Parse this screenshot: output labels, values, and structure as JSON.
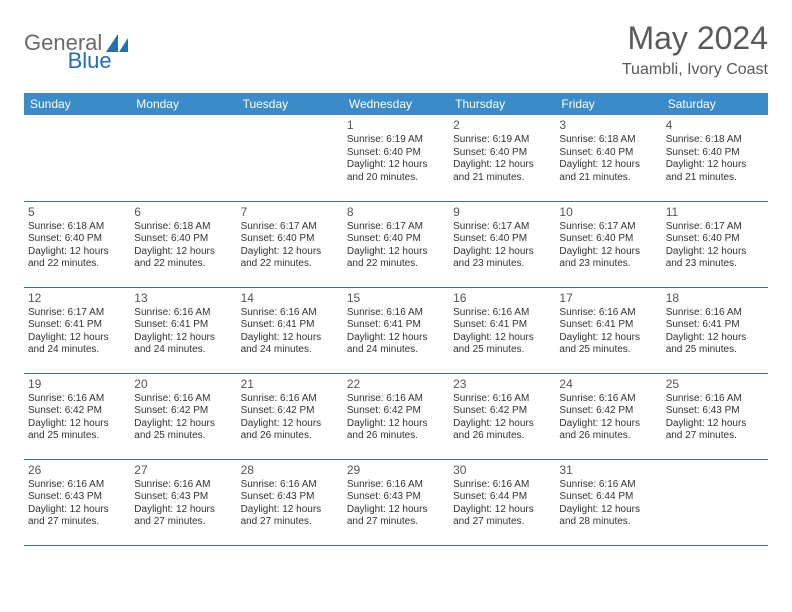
{
  "logo": {
    "text1": "General",
    "text2": "Blue"
  },
  "title": "May 2024",
  "subtitle": "Tuambli, Ivory Coast",
  "colors": {
    "header_bg": "#3b8bc9",
    "header_text": "#ffffff",
    "row_border": "#4a6a8a",
    "logo_gray": "#6a6a6a",
    "logo_blue": "#1f6fb2",
    "title_gray": "#5a5a5a",
    "body_text": "#333333"
  },
  "days": [
    "Sunday",
    "Monday",
    "Tuesday",
    "Wednesday",
    "Thursday",
    "Friday",
    "Saturday"
  ],
  "weeks": [
    [
      null,
      null,
      null,
      {
        "n": "1",
        "sr": "6:19 AM",
        "ss": "6:40 PM",
        "dl": "12 hours and 20 minutes."
      },
      {
        "n": "2",
        "sr": "6:19 AM",
        "ss": "6:40 PM",
        "dl": "12 hours and 21 minutes."
      },
      {
        "n": "3",
        "sr": "6:18 AM",
        "ss": "6:40 PM",
        "dl": "12 hours and 21 minutes."
      },
      {
        "n": "4",
        "sr": "6:18 AM",
        "ss": "6:40 PM",
        "dl": "12 hours and 21 minutes."
      }
    ],
    [
      {
        "n": "5",
        "sr": "6:18 AM",
        "ss": "6:40 PM",
        "dl": "12 hours and 22 minutes."
      },
      {
        "n": "6",
        "sr": "6:18 AM",
        "ss": "6:40 PM",
        "dl": "12 hours and 22 minutes."
      },
      {
        "n": "7",
        "sr": "6:17 AM",
        "ss": "6:40 PM",
        "dl": "12 hours and 22 minutes."
      },
      {
        "n": "8",
        "sr": "6:17 AM",
        "ss": "6:40 PM",
        "dl": "12 hours and 22 minutes."
      },
      {
        "n": "9",
        "sr": "6:17 AM",
        "ss": "6:40 PM",
        "dl": "12 hours and 23 minutes."
      },
      {
        "n": "10",
        "sr": "6:17 AM",
        "ss": "6:40 PM",
        "dl": "12 hours and 23 minutes."
      },
      {
        "n": "11",
        "sr": "6:17 AM",
        "ss": "6:40 PM",
        "dl": "12 hours and 23 minutes."
      }
    ],
    [
      {
        "n": "12",
        "sr": "6:17 AM",
        "ss": "6:41 PM",
        "dl": "12 hours and 24 minutes."
      },
      {
        "n": "13",
        "sr": "6:16 AM",
        "ss": "6:41 PM",
        "dl": "12 hours and 24 minutes."
      },
      {
        "n": "14",
        "sr": "6:16 AM",
        "ss": "6:41 PM",
        "dl": "12 hours and 24 minutes."
      },
      {
        "n": "15",
        "sr": "6:16 AM",
        "ss": "6:41 PM",
        "dl": "12 hours and 24 minutes."
      },
      {
        "n": "16",
        "sr": "6:16 AM",
        "ss": "6:41 PM",
        "dl": "12 hours and 25 minutes."
      },
      {
        "n": "17",
        "sr": "6:16 AM",
        "ss": "6:41 PM",
        "dl": "12 hours and 25 minutes."
      },
      {
        "n": "18",
        "sr": "6:16 AM",
        "ss": "6:41 PM",
        "dl": "12 hours and 25 minutes."
      }
    ],
    [
      {
        "n": "19",
        "sr": "6:16 AM",
        "ss": "6:42 PM",
        "dl": "12 hours and 25 minutes."
      },
      {
        "n": "20",
        "sr": "6:16 AM",
        "ss": "6:42 PM",
        "dl": "12 hours and 25 minutes."
      },
      {
        "n": "21",
        "sr": "6:16 AM",
        "ss": "6:42 PM",
        "dl": "12 hours and 26 minutes."
      },
      {
        "n": "22",
        "sr": "6:16 AM",
        "ss": "6:42 PM",
        "dl": "12 hours and 26 minutes."
      },
      {
        "n": "23",
        "sr": "6:16 AM",
        "ss": "6:42 PM",
        "dl": "12 hours and 26 minutes."
      },
      {
        "n": "24",
        "sr": "6:16 AM",
        "ss": "6:42 PM",
        "dl": "12 hours and 26 minutes."
      },
      {
        "n": "25",
        "sr": "6:16 AM",
        "ss": "6:43 PM",
        "dl": "12 hours and 27 minutes."
      }
    ],
    [
      {
        "n": "26",
        "sr": "6:16 AM",
        "ss": "6:43 PM",
        "dl": "12 hours and 27 minutes."
      },
      {
        "n": "27",
        "sr": "6:16 AM",
        "ss": "6:43 PM",
        "dl": "12 hours and 27 minutes."
      },
      {
        "n": "28",
        "sr": "6:16 AM",
        "ss": "6:43 PM",
        "dl": "12 hours and 27 minutes."
      },
      {
        "n": "29",
        "sr": "6:16 AM",
        "ss": "6:43 PM",
        "dl": "12 hours and 27 minutes."
      },
      {
        "n": "30",
        "sr": "6:16 AM",
        "ss": "6:44 PM",
        "dl": "12 hours and 27 minutes."
      },
      {
        "n": "31",
        "sr": "6:16 AM",
        "ss": "6:44 PM",
        "dl": "12 hours and 28 minutes."
      },
      null
    ]
  ],
  "labels": {
    "sunrise": "Sunrise: ",
    "sunset": "Sunset: ",
    "daylight": "Daylight: "
  }
}
